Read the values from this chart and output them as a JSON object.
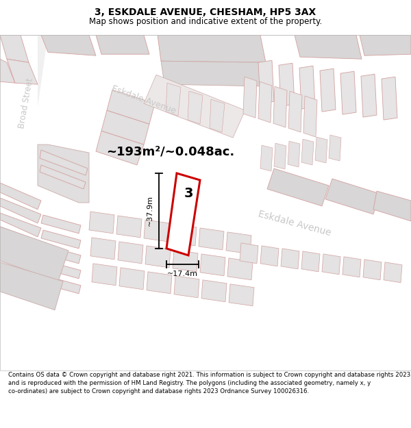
{
  "title": "3, ESKDALE AVENUE, CHESHAM, HP5 3AX",
  "subtitle": "Map shows position and indicative extent of the property.",
  "footer": "Contains OS data © Crown copyright and database right 2021. This information is subject to Crown copyright and database rights 2023 and is reproduced with the permission of HM Land Registry. The polygons (including the associated geometry, namely x, y co-ordinates) are subject to Crown copyright and database rights 2023 Ordnance Survey 100026316.",
  "area_text": "~193m²/~0.048ac.",
  "width_label": "~17.4m",
  "height_label": "~37.9m",
  "property_number": "3",
  "map_bg": "#eeecec",
  "road_color": "#ffffff",
  "building_fill_light": "#e8e6e6",
  "building_fill_dark": "#d8d6d6",
  "building_edge": "#d4a0a0",
  "highlight_color": "#cc0000",
  "street_label_color": "#c8c8c8",
  "title_fontsize": 10,
  "subtitle_fontsize": 8.5,
  "footer_fontsize": 6.2
}
